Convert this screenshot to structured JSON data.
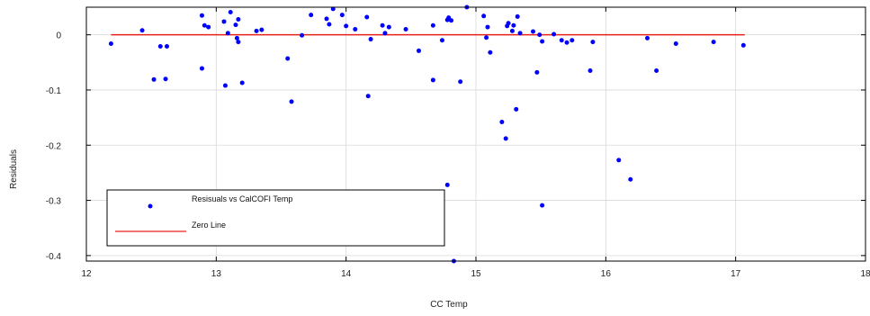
{
  "chart_data": {
    "type": "scatter",
    "xlabel": "CC Temp",
    "ylabel": "Residuals",
    "xlim": [
      12,
      18
    ],
    "ylim": [
      -0.41,
      0.05
    ],
    "xticks": [
      "12",
      "13",
      "14",
      "15",
      "16",
      "17",
      "18"
    ],
    "yticks": [
      "0",
      "-0.1",
      "-0.2",
      "-0.3",
      "-0.4"
    ],
    "grid": true,
    "legend_position": "bottom-left",
    "colors": {
      "points": "#0000ff",
      "zero_line": "#e8201a",
      "grid": "#d9d9d9",
      "axes": "#000000"
    },
    "series": [
      {
        "name": "Resisuals vs CalCOFI Temp",
        "kind": "scatter",
        "x": [
          12.19,
          12.43,
          12.52,
          12.57,
          12.61,
          12.62,
          12.89,
          12.89,
          12.91,
          12.94,
          13.06,
          13.07,
          13.09,
          13.11,
          13.15,
          13.16,
          13.17,
          13.17,
          13.2,
          13.31,
          13.35,
          13.55,
          13.58,
          13.66,
          13.73,
          13.85,
          13.87,
          13.9,
          13.97,
          14.0,
          14.07,
          14.16,
          14.17,
          14.19,
          14.28,
          14.3,
          14.33,
          14.46,
          14.56,
          14.67,
          14.67,
          14.74,
          14.78,
          14.78,
          14.79,
          14.81,
          14.83,
          14.88,
          14.93,
          15.06,
          15.08,
          15.09,
          15.11,
          15.2,
          15.23,
          15.24,
          15.25,
          15.28,
          15.29,
          15.31,
          15.32,
          15.34,
          15.44,
          15.47,
          15.49,
          15.51,
          15.51,
          15.6,
          15.66,
          15.7,
          15.74,
          15.88,
          15.9,
          16.1,
          16.19,
          16.32,
          16.39,
          16.54,
          16.83,
          17.06
        ],
        "y": [
          -0.016,
          0.008,
          -0.081,
          -0.021,
          -0.08,
          -0.021,
          0.035,
          -0.061,
          0.017,
          0.014,
          0.024,
          -0.092,
          0.003,
          0.041,
          0.018,
          -0.006,
          -0.013,
          0.028,
          -0.087,
          0.007,
          0.009,
          -0.043,
          -0.121,
          -0.001,
          0.036,
          0.029,
          0.019,
          0.047,
          0.036,
          0.016,
          0.01,
          0.032,
          -0.111,
          -0.008,
          0.017,
          0.003,
          0.014,
          0.01,
          -0.029,
          -0.082,
          0.017,
          -0.01,
          -0.272,
          0.027,
          0.031,
          0.026,
          -0.41,
          -0.085,
          0.05,
          0.034,
          -0.005,
          0.014,
          -0.032,
          -0.158,
          -0.188,
          0.016,
          0.021,
          0.007,
          0.017,
          -0.135,
          0.033,
          0.003,
          0.006,
          -0.068,
          0.0,
          -0.012,
          -0.309,
          0.001,
          -0.01,
          -0.014,
          -0.01,
          -0.065,
          -0.013,
          -0.227,
          -0.262,
          -0.006,
          -0.065,
          -0.016,
          -0.013,
          -0.019
        ]
      },
      {
        "name": "Zero Line",
        "kind": "line",
        "x": [
          12.19,
          17.07
        ],
        "y": [
          0,
          0
        ]
      }
    ]
  }
}
